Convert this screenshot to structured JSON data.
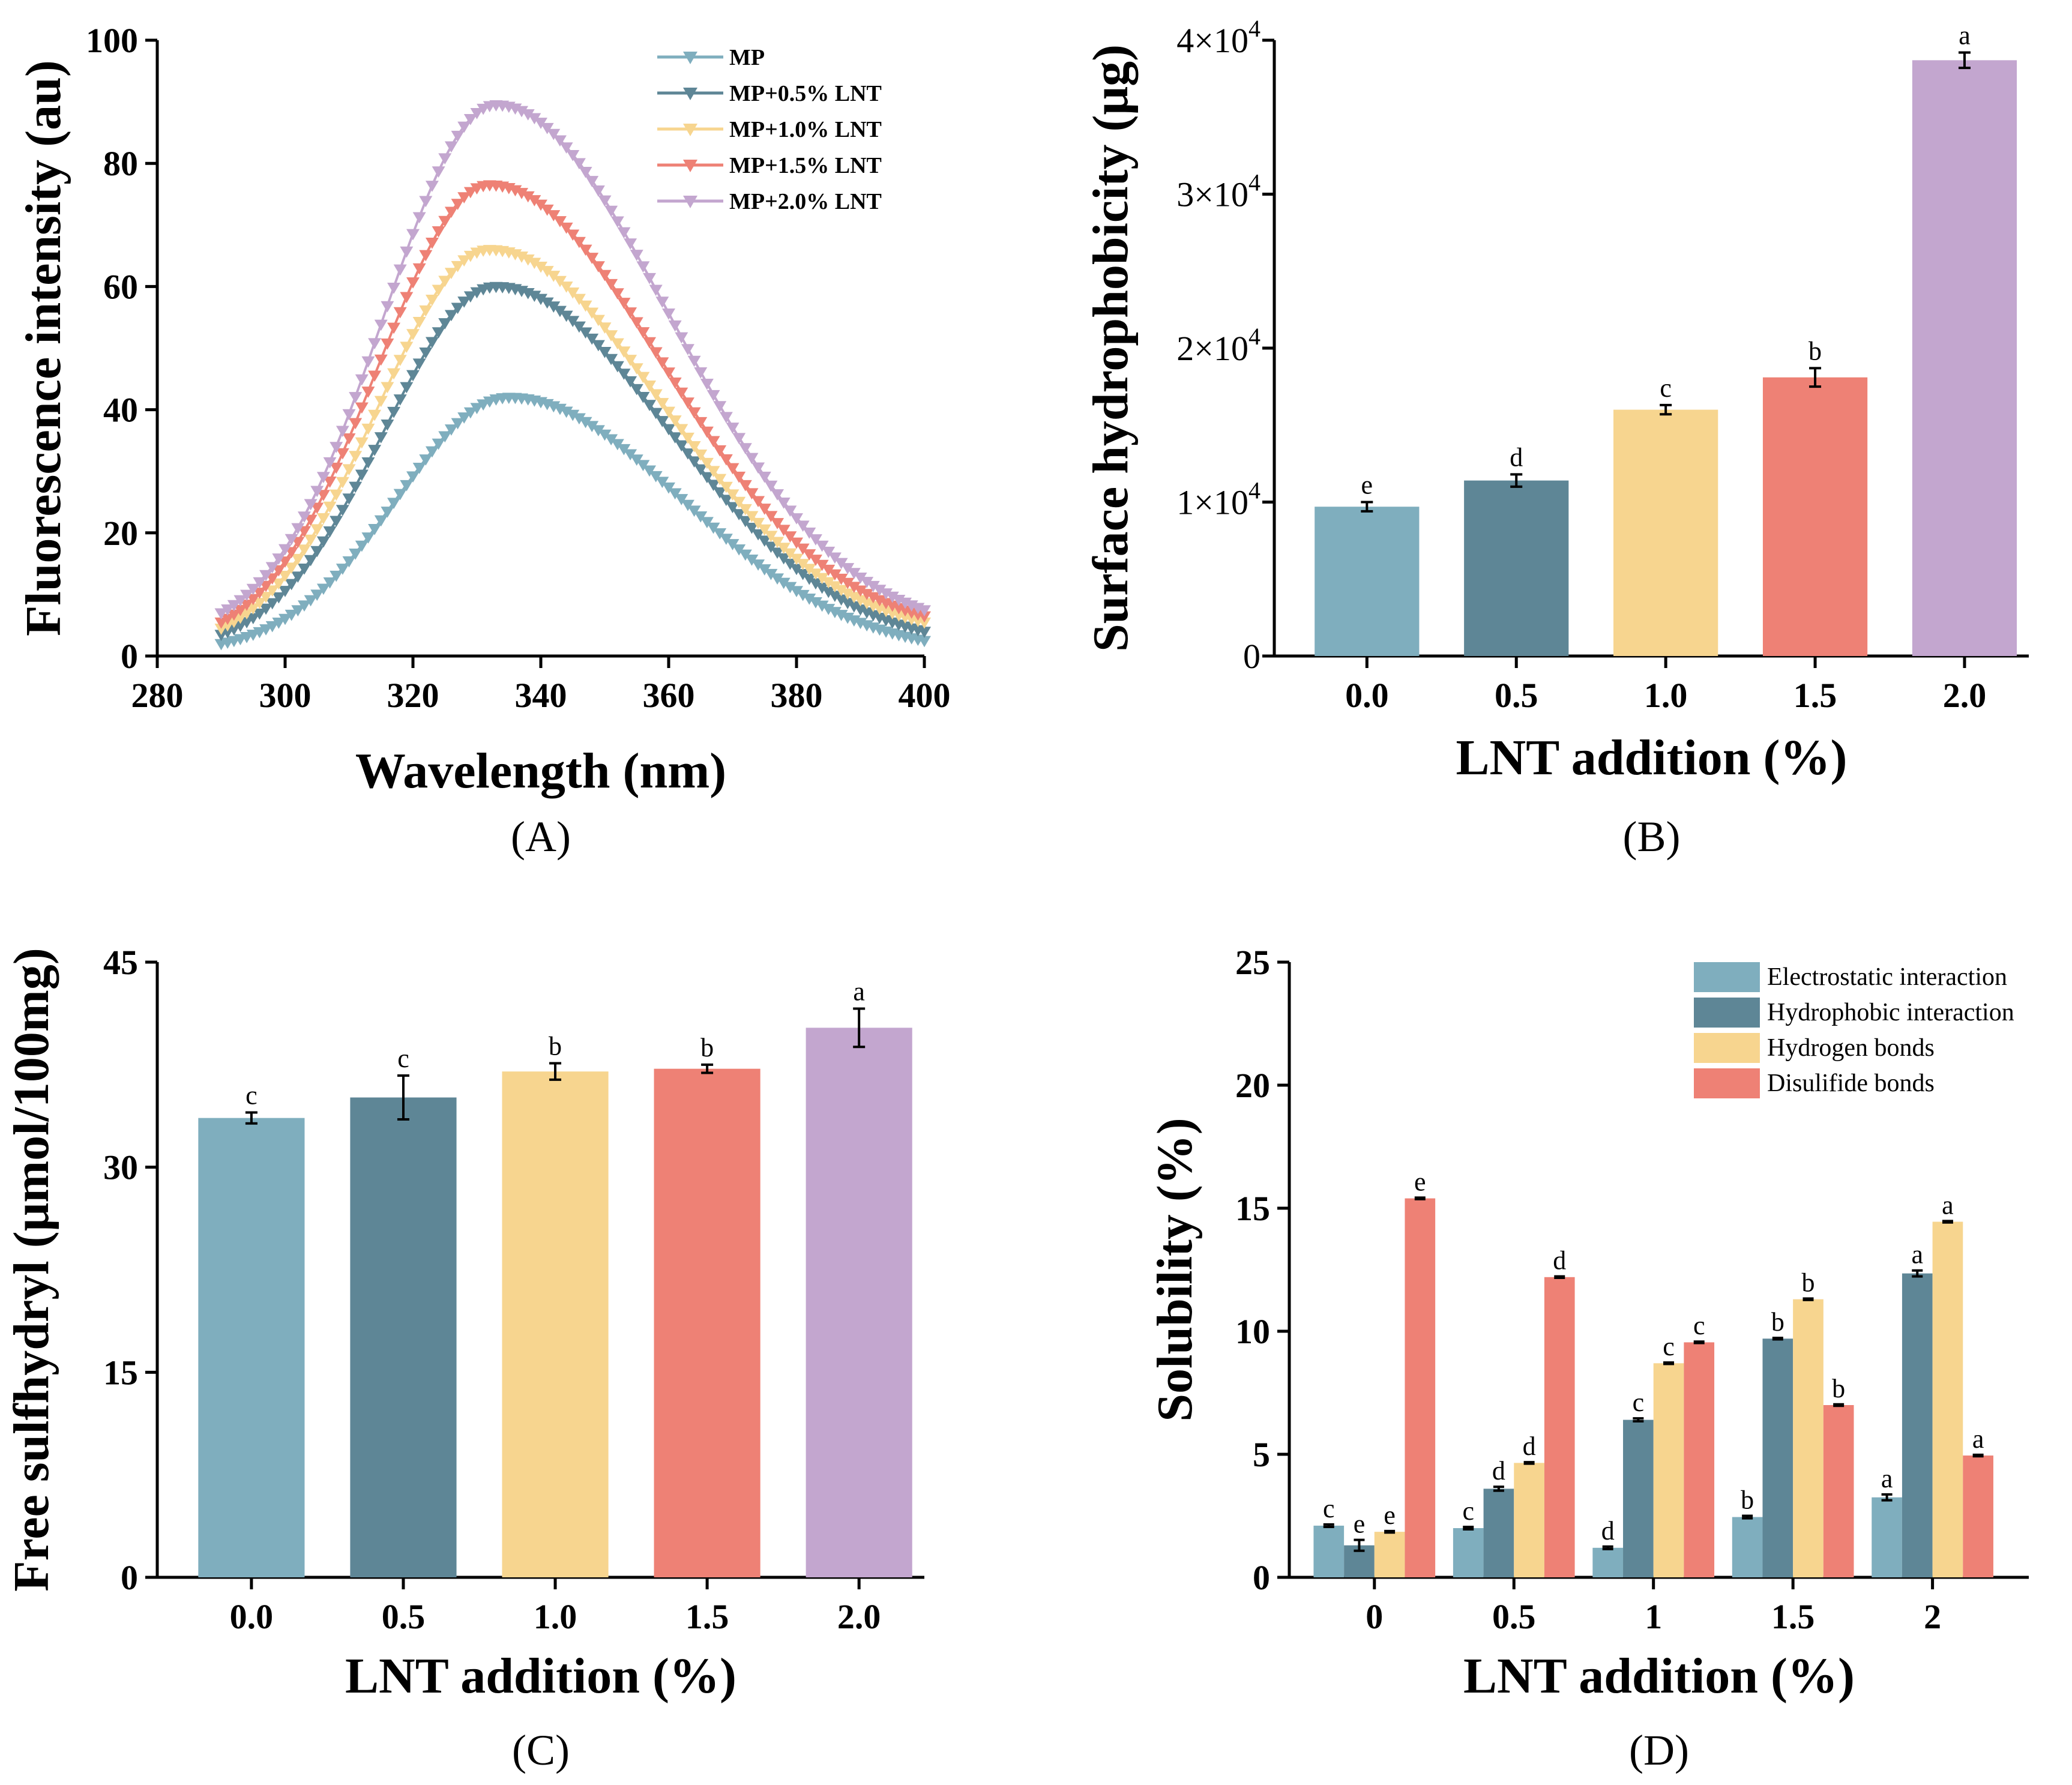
{
  "chart_data": [
    {
      "id": "A",
      "type": "line",
      "panel_label": "(A)",
      "xlabel": "Wavelength (nm)",
      "ylabel": "Fluorescence intensity (au)",
      "xlim": [
        280,
        400
      ],
      "ylim": [
        0,
        100
      ],
      "xticks": [
        280,
        300,
        320,
        340,
        360,
        380,
        400
      ],
      "yticks": [
        0,
        20,
        40,
        60,
        80,
        100
      ],
      "legend_position": "top-right",
      "series": [
        {
          "name": "MP",
          "color": "#7FAEBE",
          "peak_x": 335,
          "peak_y": 42,
          "start_y": 2,
          "end_y": 2.5
        },
        {
          "name": "MP+0.5% LNT",
          "color": "#5E8696",
          "peak_x": 333,
          "peak_y": 60,
          "start_y": 3.5,
          "end_y": 4
        },
        {
          "name": "MP+1.0% LNT",
          "color": "#F7D58F",
          "peak_x": 332,
          "peak_y": 66,
          "start_y": 4.5,
          "end_y": 5.5
        },
        {
          "name": "MP+1.5% LNT",
          "color": "#EE8175",
          "peak_x": 332,
          "peak_y": 76.5,
          "start_y": 5.5,
          "end_y": 6.5
        },
        {
          "name": "MP+2.0% LNT",
          "color": "#C3A6CF",
          "peak_x": 333,
          "peak_y": 89.5,
          "start_y": 7,
          "end_y": 7.5
        }
      ]
    },
    {
      "id": "B",
      "type": "bar",
      "panel_label": "(B)",
      "xlabel": "LNT addition (%)",
      "ylabel": "Surface hydrophobicity (μg)",
      "categories": [
        "0.0",
        "0.5",
        "1.0",
        "1.5",
        "2.0"
      ],
      "values": [
        9700,
        11400,
        16000,
        18100,
        38700
      ],
      "errors": [
        300,
        400,
        300,
        600,
        500
      ],
      "letters": [
        "e",
        "d",
        "c",
        "b",
        "a"
      ],
      "colors": [
        "#7FAEBE",
        "#5E8696",
        "#F7D58F",
        "#EE8175",
        "#C3A6CF"
      ],
      "ylim": [
        0,
        40000
      ],
      "ytick_values": [
        0,
        10000,
        20000,
        30000,
        40000
      ],
      "ytick_labels": [
        {
          "base": "0",
          "exp": ""
        },
        {
          "base": "1×10",
          "exp": "4"
        },
        {
          "base": "2×10",
          "exp": "4"
        },
        {
          "base": "3×10",
          "exp": "4"
        },
        {
          "base": "4×10",
          "exp": "4"
        }
      ]
    },
    {
      "id": "C",
      "type": "bar",
      "panel_label": "(C)",
      "xlabel": "LNT addition (%)",
      "ylabel": "Free sulfhydryl (μmol/100mg)",
      "categories": [
        "0.0",
        "0.5",
        "1.0",
        "1.5",
        "2.0"
      ],
      "values": [
        33.6,
        35.1,
        37.0,
        37.2,
        40.2
      ],
      "errors": [
        0.4,
        1.6,
        0.6,
        0.3,
        1.4
      ],
      "letters": [
        "c",
        "c",
        "b",
        "b",
        "a"
      ],
      "colors": [
        "#7FAEBE",
        "#5E8696",
        "#F7D58F",
        "#EE8175",
        "#C3A6CF"
      ],
      "ylim": [
        0,
        45
      ],
      "ytick_values": [
        0,
        15,
        30,
        45
      ],
      "ytick_labels": [
        "0",
        "15",
        "30",
        "45"
      ]
    },
    {
      "id": "D",
      "type": "bar",
      "panel_label": "(D)",
      "xlabel": "LNT addition (%)",
      "ylabel": "Solubility (%)",
      "categories": [
        "0",
        "0.5",
        "1",
        "1.5",
        "2"
      ],
      "ylim": [
        0,
        25
      ],
      "ytick_values": [
        0,
        5,
        10,
        15,
        20,
        25
      ],
      "ytick_labels": [
        "0",
        "5",
        "10",
        "15",
        "20",
        "25"
      ],
      "legend_position": "top-right",
      "series": [
        {
          "name": "Electrostatic interaction",
          "color": "#7FAEBE",
          "values": [
            2.1,
            2.0,
            1.2,
            2.45,
            3.25
          ],
          "errors": [
            0.05,
            0.05,
            0.05,
            0.05,
            0.12
          ],
          "letters": [
            "c",
            "c",
            "d",
            "b",
            "a"
          ]
        },
        {
          "name": "Hydrophobic interaction",
          "color": "#5E8696",
          "values": [
            1.3,
            3.6,
            6.4,
            9.7,
            12.35
          ],
          "errors": [
            0.22,
            0.08,
            0.06,
            0.03,
            0.12
          ],
          "letters": [
            "e",
            "d",
            "c",
            "b",
            "a"
          ]
        },
        {
          "name": "Hydrogen bonds",
          "color": "#F7D58F",
          "values": [
            1.85,
            4.65,
            8.7,
            11.3,
            14.45
          ],
          "errors": [
            0.03,
            0.03,
            0.03,
            0.03,
            0.03
          ],
          "letters": [
            "e",
            "d",
            "c",
            "b",
            "a"
          ]
        },
        {
          "name": "Disulifide bonds",
          "color": "#EE8175",
          "values": [
            15.4,
            12.2,
            9.55,
            7.0,
            4.95
          ],
          "errors": [
            0.03,
            0.03,
            0.03,
            0.03,
            0.03
          ],
          "letters": [
            "e",
            "d",
            "c",
            "b",
            "a"
          ]
        }
      ]
    }
  ]
}
